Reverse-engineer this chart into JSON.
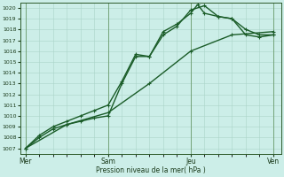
{
  "xlabel": "Pression niveau de la mer( hPa )",
  "ylim": [
    1006.5,
    1020.5
  ],
  "yticks": [
    1007,
    1008,
    1009,
    1010,
    1011,
    1012,
    1013,
    1014,
    1015,
    1016,
    1017,
    1018,
    1019,
    1020
  ],
  "xtick_labels": [
    "Mer",
    "Sam",
    "Jeu",
    "Ven"
  ],
  "xtick_positions": [
    0,
    3,
    6,
    9
  ],
  "background_color": "#cceee8",
  "grid_color": "#aad4c8",
  "line_color": "#1a5c28",
  "line1_x": [
    0,
    0.5,
    1.0,
    1.5,
    2.0,
    2.5,
    3.0,
    3.5,
    4.0,
    4.5,
    5.0,
    5.5,
    6.0,
    6.5,
    7.0,
    7.5,
    8.0,
    8.5,
    9.0
  ],
  "line1_y": [
    1007.0,
    1008.0,
    1008.8,
    1009.2,
    1009.5,
    1009.8,
    1010.0,
    1013.0,
    1015.5,
    1015.5,
    1017.5,
    1018.3,
    1019.8,
    1020.2,
    1019.2,
    1019.0,
    1017.5,
    1017.3,
    1017.5
  ],
  "line2_x": [
    0,
    0.5,
    1.0,
    1.5,
    2.0,
    2.5,
    3.0,
    3.5,
    4.0,
    4.5,
    5.0,
    5.5,
    6.0,
    6.25,
    6.5,
    7.0,
    7.5,
    8.0,
    8.5,
    9.0
  ],
  "line2_y": [
    1007.0,
    1008.2,
    1009.0,
    1009.5,
    1010.0,
    1010.5,
    1011.0,
    1013.2,
    1015.7,
    1015.5,
    1017.8,
    1018.5,
    1019.5,
    1020.3,
    1019.5,
    1019.2,
    1019.0,
    1018.0,
    1017.5,
    1017.5
  ],
  "line3_x": [
    0,
    1.5,
    3.0,
    4.5,
    6.0,
    7.5,
    9.0
  ],
  "line3_y": [
    1007.0,
    1009.2,
    1010.3,
    1013.0,
    1016.0,
    1017.5,
    1017.8
  ],
  "marker": "P",
  "markersize": 2.5,
  "linewidth": 1.0
}
